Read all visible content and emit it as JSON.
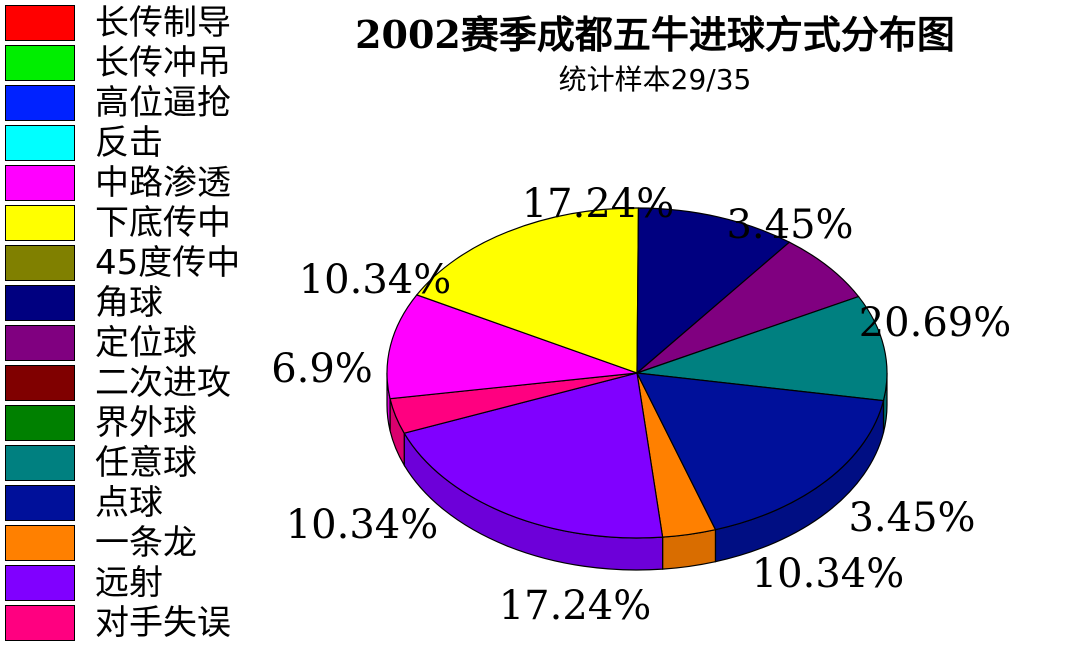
{
  "title": "2002赛季成都五牛进球方式分布图",
  "subtitle": "统计样本29/35",
  "legend": [
    {
      "label": "长传制导",
      "color": "#ff0000"
    },
    {
      "label": "长传冲吊",
      "color": "#00ee00"
    },
    {
      "label": "高位逼抢",
      "color": "#0022ff"
    },
    {
      "label": "反击",
      "color": "#00ffff"
    },
    {
      "label": "中路渗透",
      "color": "#ff00ff"
    },
    {
      "label": "下底传中",
      "color": "#ffff00"
    },
    {
      "label": "45度传中",
      "color": "#808000"
    },
    {
      "label": "角球",
      "color": "#000080"
    },
    {
      "label": "定位球",
      "color": "#800080"
    },
    {
      "label": "二次进攻",
      "color": "#800000"
    },
    {
      "label": "界外球",
      "color": "#008000"
    },
    {
      "label": "任意球",
      "color": "#008080"
    },
    {
      "label": "点球",
      "color": "#00109a"
    },
    {
      "label": "一条龙",
      "color": "#ff8000"
    },
    {
      "label": "远射",
      "color": "#8000ff"
    },
    {
      "label": "对手失误",
      "color": "#ff0080"
    }
  ],
  "chart_data": {
    "type": "pie",
    "style": "3d",
    "slices": [
      {
        "category": "一条龙",
        "value": 3.45,
        "label": "3.45%",
        "color": "#ff8000"
      },
      {
        "category": "远射",
        "value": 20.69,
        "label": "20.69%",
        "color": "#8000ff"
      },
      {
        "category": "对手失误",
        "value": 3.45,
        "label": "3.45%",
        "color": "#ff0080"
      },
      {
        "category": "中路渗透",
        "value": 10.34,
        "label": "10.34%",
        "color": "#ff00ff"
      },
      {
        "category": "下底传中",
        "value": 17.24,
        "label": "17.24%",
        "color": "#ffff00"
      },
      {
        "category": "角球",
        "value": 10.34,
        "label": "10.34%",
        "color": "#000080"
      },
      {
        "category": "定位球",
        "value": 6.9,
        "label": "6.9%",
        "color": "#800080"
      },
      {
        "category": "任意球",
        "value": 10.34,
        "label": "10.34%",
        "color": "#008080"
      },
      {
        "category": "点球",
        "value": 17.24,
        "label": "17.24%",
        "color": "#00109a"
      }
    ]
  }
}
